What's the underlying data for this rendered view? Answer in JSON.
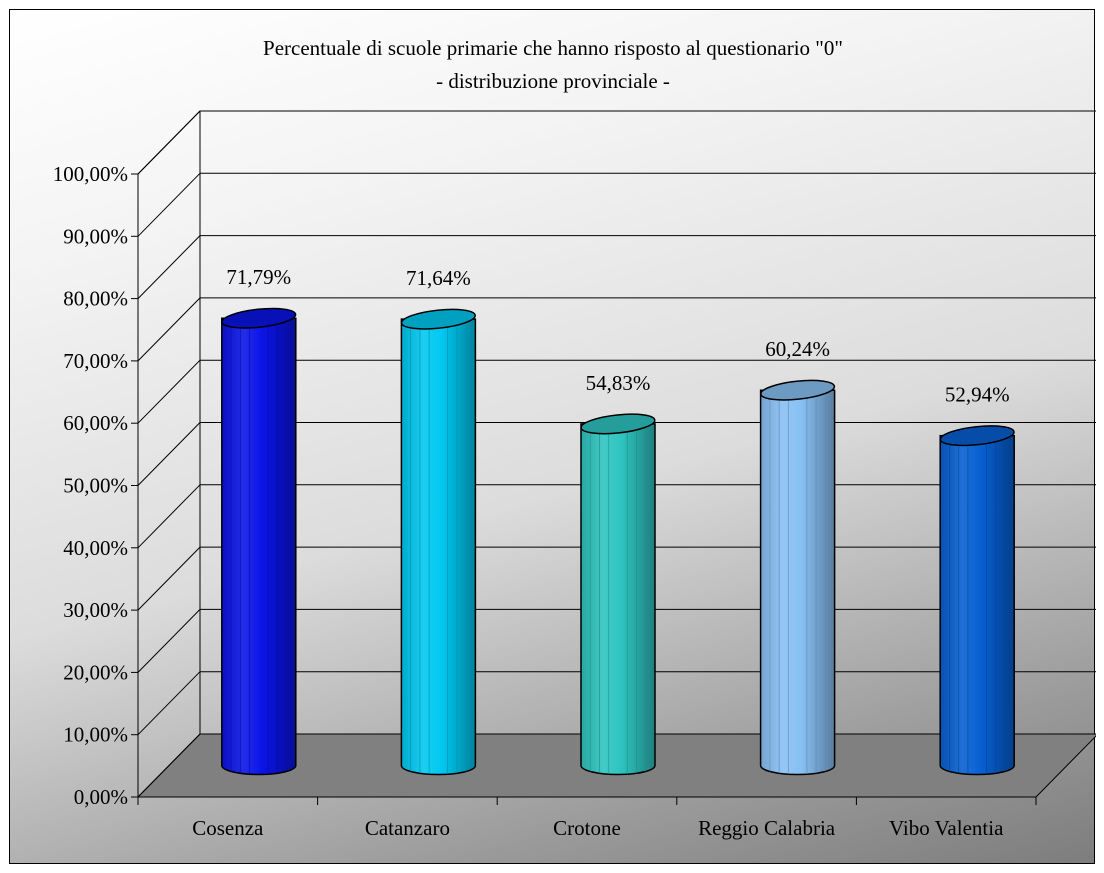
{
  "chart_data": {
    "type": "bar",
    "bar_shape": "cylinder-3d",
    "title": "Percentuale di scuole primarie che hanno risposto al questionario \"0\"",
    "subtitle": "- distribuzione provinciale -",
    "categories": [
      "Cosenza",
      "Catanzaro",
      "Crotone",
      "Reggio Calabria",
      "Vibo Valentia"
    ],
    "values": [
      71.79,
      71.64,
      54.83,
      60.24,
      52.94
    ],
    "data_labels": [
      "71,79%",
      "71,64%",
      "54,83%",
      "60,24%",
      "52,94%"
    ],
    "y_ticks": [
      "0,00%",
      "10,00%",
      "20,00%",
      "30,00%",
      "40,00%",
      "50,00%",
      "60,00%",
      "70,00%",
      "80,00%",
      "90,00%",
      "100,00%"
    ],
    "ylim": [
      0,
      100
    ],
    "xlabel": "",
    "ylabel": "",
    "grid": true,
    "legend": "none",
    "colors": [
      "#0a14e6",
      "#00c8f0",
      "#2ec4c0",
      "#88c0f4",
      "#0660d2"
    ],
    "floor_color": "#808080",
    "background_gradient": [
      "#ffffff",
      "#7d7d7d"
    ]
  }
}
